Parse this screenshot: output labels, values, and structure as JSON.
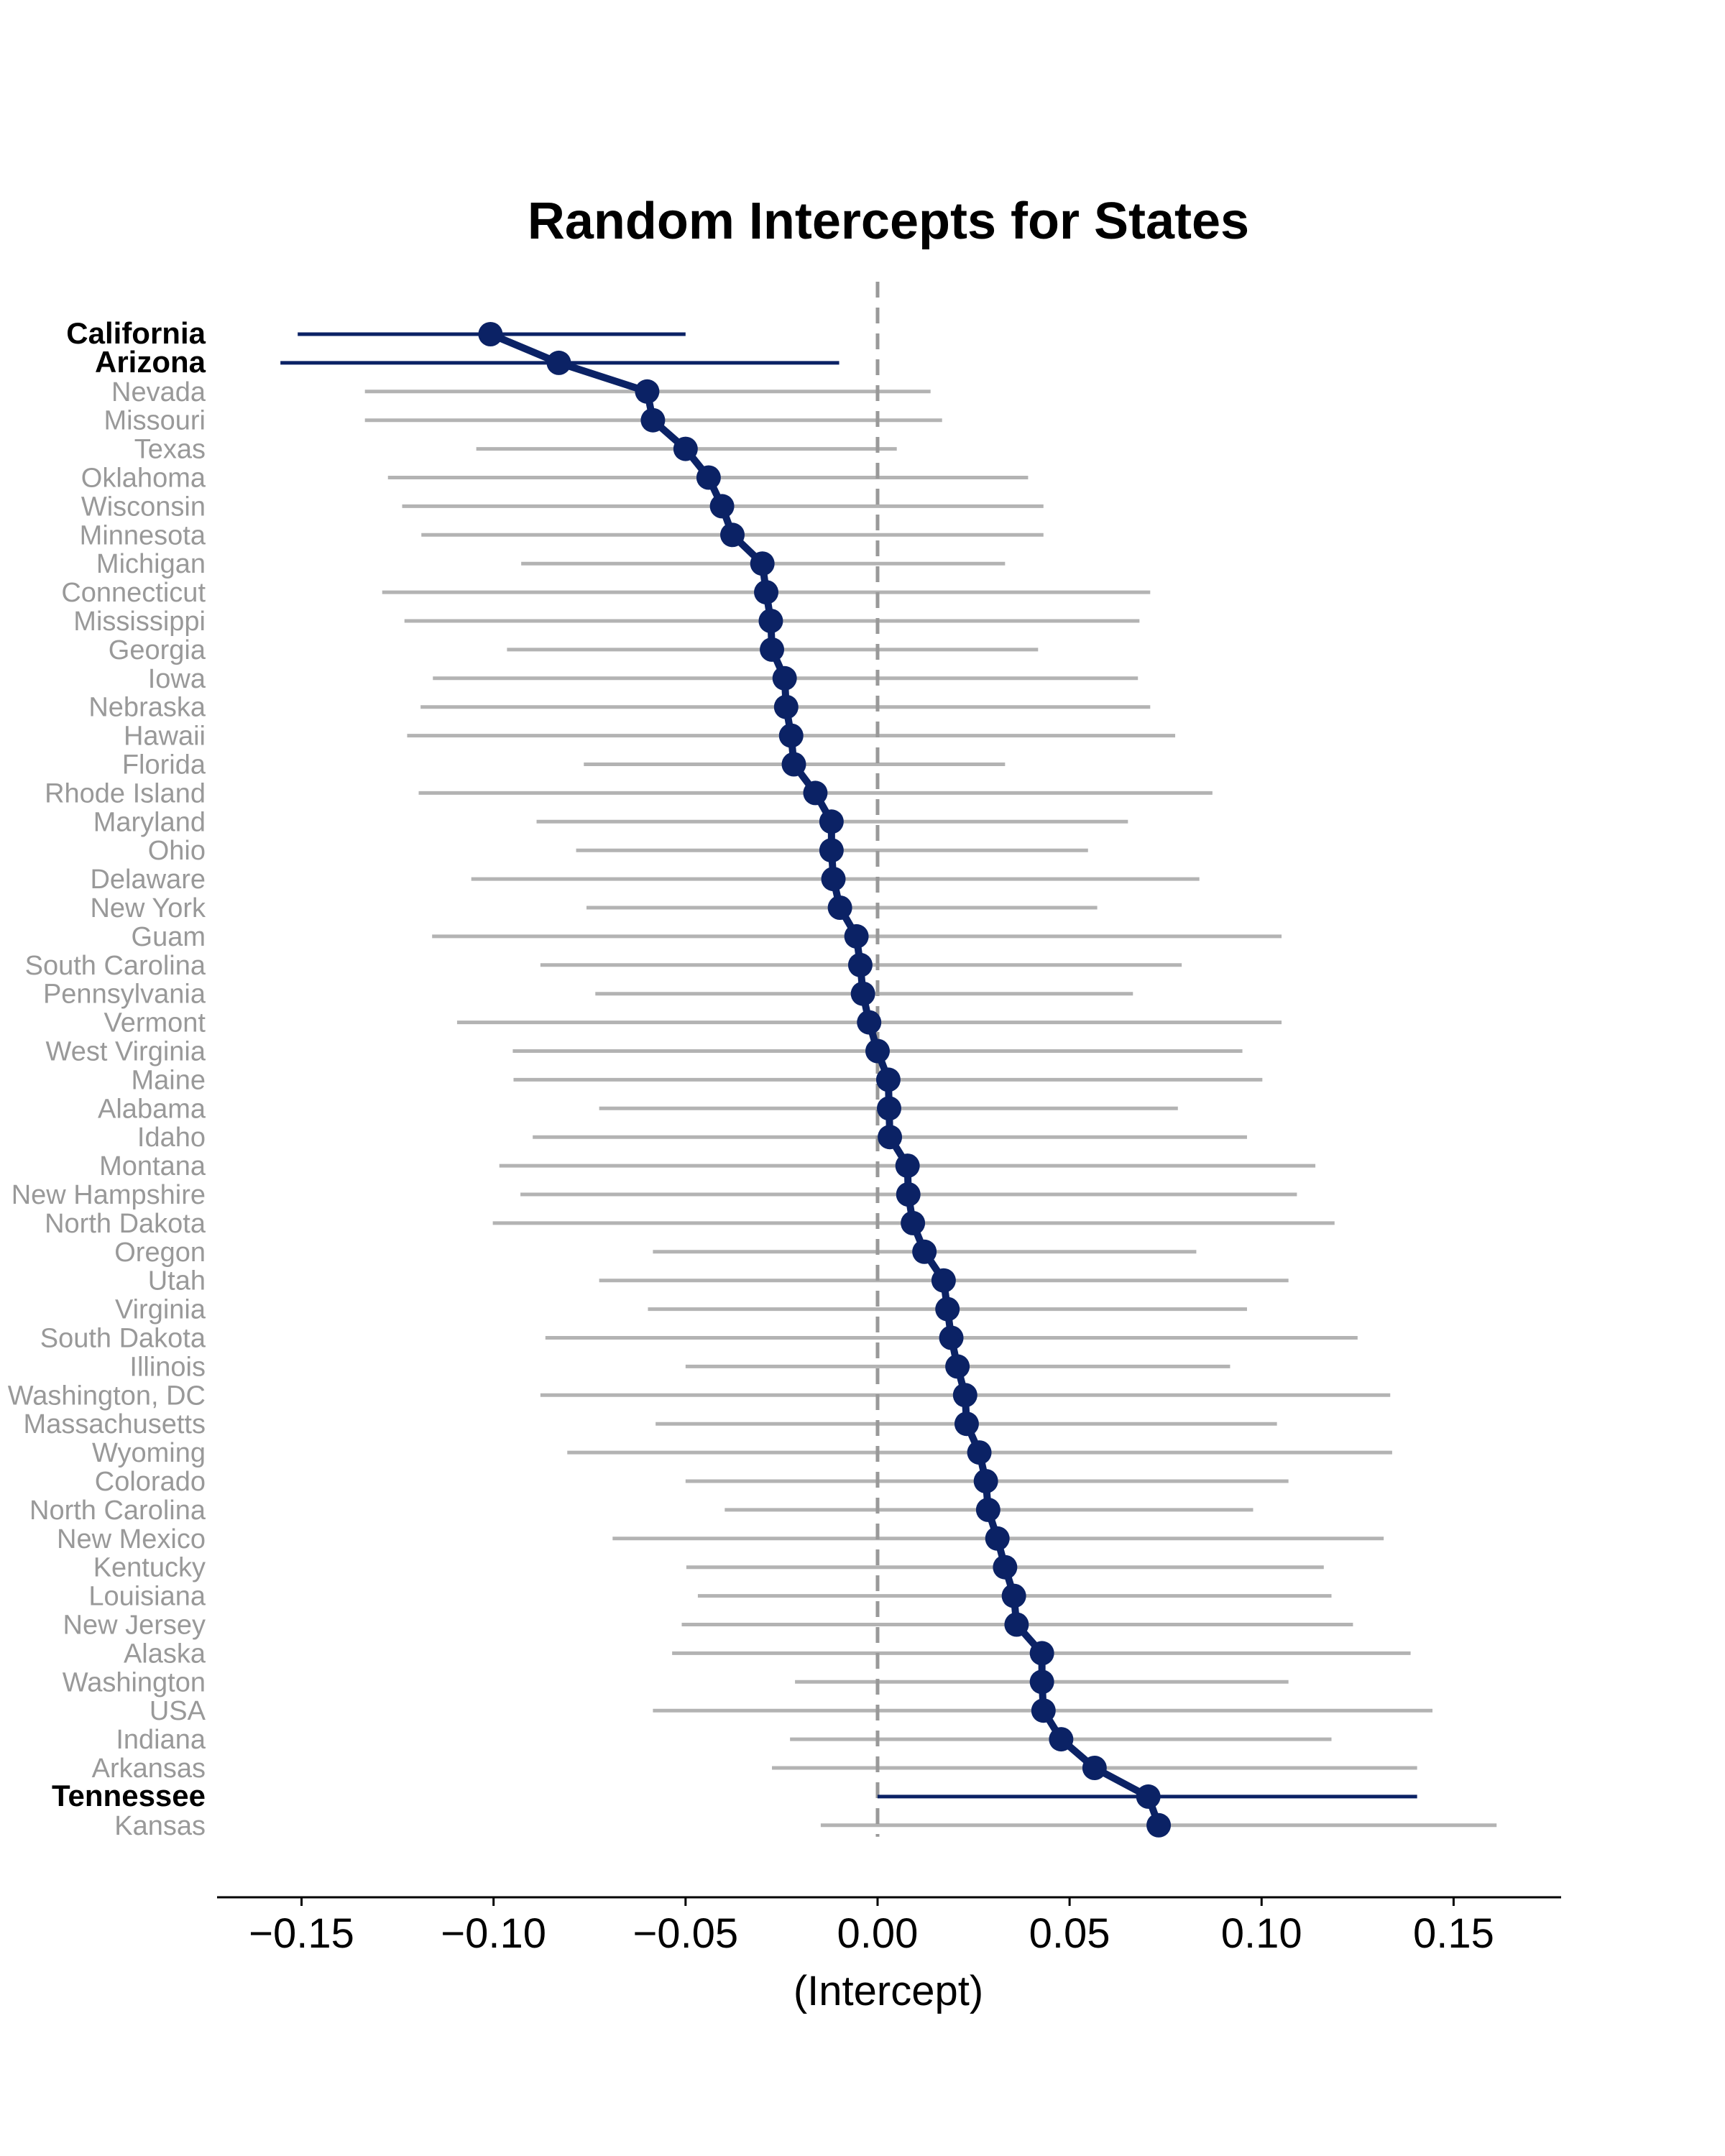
{
  "chart_data": {
    "type": "scatter",
    "title": "Random Intercepts for States",
    "xlabel": "(Intercept)",
    "ylabel": "",
    "xlim": [
      -0.172,
      0.178
    ],
    "xticks": [
      -0.15,
      -0.1,
      -0.05,
      0.0,
      0.05,
      0.1,
      0.15
    ],
    "xtick_labels": [
      "−0.15",
      "−0.10",
      "−0.05",
      "0.00",
      "0.05",
      "0.10",
      "0.15"
    ],
    "reference_line_x": 0,
    "grid": false,
    "colors": {
      "highlight": "#0b2265",
      "interval": "#b3b3b3",
      "label": "#999999",
      "label_highlight": "#000000",
      "reference": "#999999"
    },
    "points": [
      {
        "state": "California",
        "estimate": -0.1008,
        "lower": -0.151,
        "upper": -0.05,
        "highlight": true
      },
      {
        "state": "Arizona",
        "estimate": -0.083,
        "lower": -0.1555,
        "upper": -0.01,
        "highlight": true
      },
      {
        "state": "Nevada",
        "estimate": -0.06,
        "lower": -0.1335,
        "upper": 0.0138,
        "highlight": false
      },
      {
        "state": "Missouri",
        "estimate": -0.0585,
        "lower": -0.1335,
        "upper": 0.0168,
        "highlight": false
      },
      {
        "state": "Texas",
        "estimate": -0.05,
        "lower": -0.1045,
        "upper": 0.005,
        "highlight": false
      },
      {
        "state": "Oklahoma",
        "estimate": -0.044,
        "lower": -0.1275,
        "upper": 0.0392,
        "highlight": false
      },
      {
        "state": "Wisconsin",
        "estimate": -0.0405,
        "lower": -0.1238,
        "upper": 0.0432,
        "highlight": false
      },
      {
        "state": "Minnesota",
        "estimate": -0.0378,
        "lower": -0.1188,
        "upper": 0.0432,
        "highlight": false
      },
      {
        "state": "Michigan",
        "estimate": -0.03,
        "lower": -0.0928,
        "upper": 0.0332,
        "highlight": false
      },
      {
        "state": "Connecticut",
        "estimate": -0.029,
        "lower": -0.129,
        "upper": 0.071,
        "highlight": false
      },
      {
        "state": "Mississippi",
        "estimate": -0.0278,
        "lower": -0.1232,
        "upper": 0.0682,
        "highlight": false
      },
      {
        "state": "Georgia",
        "estimate": -0.0275,
        "lower": -0.0965,
        "upper": 0.0418,
        "highlight": false
      },
      {
        "state": "Iowa",
        "estimate": -0.0242,
        "lower": -0.1158,
        "upper": 0.0678,
        "highlight": false
      },
      {
        "state": "Nebraska",
        "estimate": -0.0238,
        "lower": -0.119,
        "upper": 0.071,
        "highlight": false
      },
      {
        "state": "Hawaii",
        "estimate": -0.0225,
        "lower": -0.1225,
        "upper": 0.0775,
        "highlight": false
      },
      {
        "state": "Florida",
        "estimate": -0.0218,
        "lower": -0.0765,
        "upper": 0.0332,
        "highlight": false
      },
      {
        "state": "Rhode Island",
        "estimate": -0.0162,
        "lower": -0.1195,
        "upper": 0.0872,
        "highlight": false
      },
      {
        "state": "Maryland",
        "estimate": -0.012,
        "lower": -0.0888,
        "upper": 0.0652,
        "highlight": false
      },
      {
        "state": "Ohio",
        "estimate": -0.012,
        "lower": -0.0785,
        "upper": 0.0548,
        "highlight": false
      },
      {
        "state": "Delaware",
        "estimate": -0.0115,
        "lower": -0.1058,
        "upper": 0.0838,
        "highlight": false
      },
      {
        "state": "New York",
        "estimate": -0.0098,
        "lower": -0.0758,
        "upper": 0.0572,
        "highlight": false
      },
      {
        "state": "Guam",
        "estimate": -0.0055,
        "lower": -0.116,
        "upper": 0.1052,
        "highlight": false
      },
      {
        "state": "South Carolina",
        "estimate": -0.0045,
        "lower": -0.0878,
        "upper": 0.0792,
        "highlight": false
      },
      {
        "state": "Pennsylvania",
        "estimate": -0.0038,
        "lower": -0.0735,
        "upper": 0.0665,
        "highlight": false
      },
      {
        "state": "Vermont",
        "estimate": -0.0022,
        "lower": -0.1095,
        "upper": 0.1052,
        "highlight": false
      },
      {
        "state": "West Virginia",
        "estimate": 0.0,
        "lower": -0.095,
        "upper": 0.095,
        "highlight": false
      },
      {
        "state": "Maine",
        "estimate": 0.0028,
        "lower": -0.0948,
        "upper": 0.1002,
        "highlight": false
      },
      {
        "state": "Alabama",
        "estimate": 0.003,
        "lower": -0.0725,
        "upper": 0.0782,
        "highlight": false
      },
      {
        "state": "Idaho",
        "estimate": 0.0032,
        "lower": -0.0898,
        "upper": 0.0962,
        "highlight": false
      },
      {
        "state": "Montana",
        "estimate": 0.0078,
        "lower": -0.0985,
        "upper": 0.114,
        "highlight": false
      },
      {
        "state": "New Hampshire",
        "estimate": 0.008,
        "lower": -0.093,
        "upper": 0.1092,
        "highlight": false
      },
      {
        "state": "North Dakota",
        "estimate": 0.0092,
        "lower": -0.1002,
        "upper": 0.119,
        "highlight": false
      },
      {
        "state": "Oregon",
        "estimate": 0.0122,
        "lower": -0.0585,
        "upper": 0.083,
        "highlight": false
      },
      {
        "state": "Utah",
        "estimate": 0.0172,
        "lower": -0.0725,
        "upper": 0.107,
        "highlight": false
      },
      {
        "state": "Virginia",
        "estimate": 0.0182,
        "lower": -0.0598,
        "upper": 0.0962,
        "highlight": false
      },
      {
        "state": "South Dakota",
        "estimate": 0.0192,
        "lower": -0.0865,
        "upper": 0.125,
        "highlight": false
      },
      {
        "state": "Illinois",
        "estimate": 0.0208,
        "lower": -0.05,
        "upper": 0.0918,
        "highlight": false
      },
      {
        "state": "Washington, DC",
        "estimate": 0.0228,
        "lower": -0.0878,
        "upper": 0.1335,
        "highlight": false
      },
      {
        "state": "Massachusetts",
        "estimate": 0.0232,
        "lower": -0.0578,
        "upper": 0.104,
        "highlight": false
      },
      {
        "state": "Wyoming",
        "estimate": 0.0265,
        "lower": -0.0808,
        "upper": 0.134,
        "highlight": false
      },
      {
        "state": "Colorado",
        "estimate": 0.0282,
        "lower": -0.05,
        "upper": 0.107,
        "highlight": false
      },
      {
        "state": "North Carolina",
        "estimate": 0.0288,
        "lower": -0.0398,
        "upper": 0.0978,
        "highlight": false
      },
      {
        "state": "New Mexico",
        "estimate": 0.0312,
        "lower": -0.069,
        "upper": 0.1318,
        "highlight": false
      },
      {
        "state": "Kentucky",
        "estimate": 0.0332,
        "lower": -0.0498,
        "upper": 0.1162,
        "highlight": false
      },
      {
        "state": "Louisiana",
        "estimate": 0.0355,
        "lower": -0.0468,
        "upper": 0.1182,
        "highlight": false
      },
      {
        "state": "New Jersey",
        "estimate": 0.0362,
        "lower": -0.051,
        "upper": 0.1238,
        "highlight": false
      },
      {
        "state": "Alaska",
        "estimate": 0.0428,
        "lower": -0.0535,
        "upper": 0.1388,
        "highlight": false
      },
      {
        "state": "Washington",
        "estimate": 0.0428,
        "lower": -0.0215,
        "upper": 0.107,
        "highlight": false
      },
      {
        "state": "USA",
        "estimate": 0.0432,
        "lower": -0.0585,
        "upper": 0.1445,
        "highlight": false
      },
      {
        "state": "Indiana",
        "estimate": 0.0478,
        "lower": -0.0228,
        "upper": 0.1182,
        "highlight": false
      },
      {
        "state": "Arkansas",
        "estimate": 0.0565,
        "lower": -0.0275,
        "upper": 0.1405,
        "highlight": false
      },
      {
        "state": "Tennessee",
        "estimate": 0.0705,
        "lower": 0.0,
        "upper": 0.1405,
        "highlight": true
      },
      {
        "state": "Kansas",
        "estimate": 0.0732,
        "lower": -0.0148,
        "upper": 0.1612,
        "highlight": false
      }
    ]
  }
}
